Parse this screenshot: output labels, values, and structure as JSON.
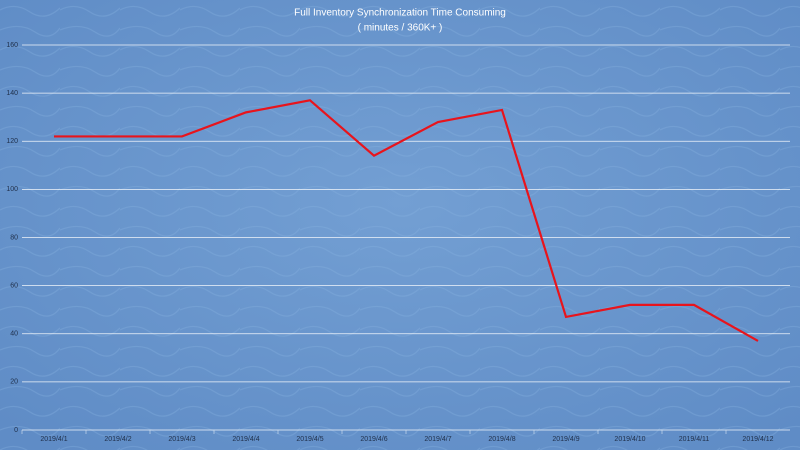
{
  "chart_data": {
    "type": "line",
    "title": "Full Inventory  Synchronization Time Consuming",
    "subtitle": "( minutes / 360K+ )",
    "categories": [
      "2019/4/1",
      "2019/4/2",
      "2019/4/3",
      "2019/4/4",
      "2019/4/5",
      "2019/4/6",
      "2019/4/7",
      "2019/4/8",
      "2019/4/9",
      "2019/4/10",
      "2019/4/11",
      "2019/4/12"
    ],
    "values": [
      122,
      122,
      122,
      132,
      137,
      114,
      128,
      133,
      47,
      52,
      52,
      37
    ],
    "color": "#e8141c",
    "ylim": [
      0,
      160
    ],
    "yticks": [
      0,
      20,
      40,
      60,
      80,
      100,
      120,
      140,
      160
    ],
    "grid": true
  }
}
